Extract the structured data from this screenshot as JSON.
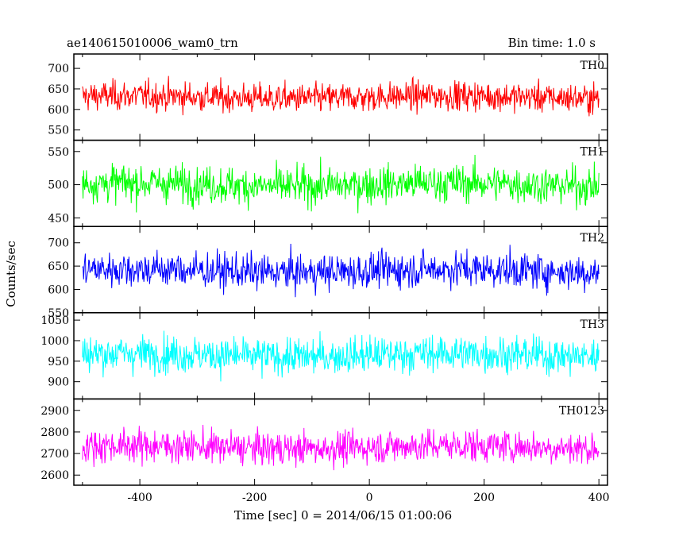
{
  "header": {
    "title": "ae140615010006_wam0_trn",
    "bin_time": "Bin time: 1.0 s"
  },
  "chart_data": {
    "type": "line",
    "xlabel": "Time [sec] 0 = 2014/06/15 01:00:06",
    "ylabel": "Counts/sec",
    "xlim": [
      -515,
      415
    ],
    "xticks": [
      -400,
      -200,
      0,
      200,
      400
    ],
    "x_range": [
      -500,
      400
    ],
    "bin_time_s": 1.0,
    "panels": [
      {
        "name": "TH0",
        "color": "#ff0000",
        "ylim": [
          525,
          735
        ],
        "yticks": [
          550,
          600,
          650,
          700
        ],
        "mean": 630,
        "noise": 28
      },
      {
        "name": "TH1",
        "color": "#00ff00",
        "ylim": [
          437,
          567
        ],
        "yticks": [
          450,
          500,
          550
        ],
        "mean": 500,
        "noise": 22
      },
      {
        "name": "TH2",
        "color": "#0000ff",
        "ylim": [
          550,
          735
        ],
        "yticks": [
          550,
          600,
          650,
          700
        ],
        "mean": 640,
        "noise": 30
      },
      {
        "name": "TH3",
        "color": "#00ffff",
        "ylim": [
          858,
          1068
        ],
        "yticks": [
          900,
          950,
          1000,
          1050
        ],
        "mean": 965,
        "noise": 35
      },
      {
        "name": "TH0123",
        "color": "#ff00ff",
        "ylim": [
          2553,
          2953
        ],
        "yticks": [
          2600,
          2700,
          2800,
          2900
        ],
        "mean": 2730,
        "noise": 60
      }
    ]
  }
}
